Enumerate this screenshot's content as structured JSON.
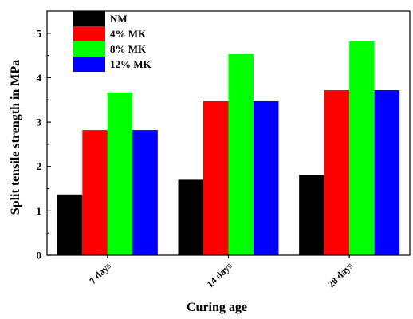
{
  "chart_data": {
    "type": "bar",
    "xlabel": "Curing age",
    "ylabel": "Split tensile strength in MPa",
    "categories": [
      "7 days",
      "14 days",
      "28 days"
    ],
    "ylim": [
      0,
      5.5
    ],
    "yticks": [
      "0",
      "1",
      "2",
      "3",
      "4",
      "5"
    ],
    "grid": false,
    "legend_position": "top-left",
    "series": [
      {
        "name": "NM",
        "color": "#000000",
        "values": [
          1.37,
          1.7,
          1.81
        ]
      },
      {
        "name": "4% MK",
        "color": "#ff0000",
        "values": [
          2.82,
          3.47,
          3.72
        ]
      },
      {
        "name": "8% MK",
        "color": "#00ff00",
        "values": [
          3.67,
          4.53,
          4.82
        ]
      },
      {
        "name": "12% MK",
        "color": "#0000ff",
        "values": [
          2.82,
          3.47,
          3.72
        ]
      }
    ]
  }
}
